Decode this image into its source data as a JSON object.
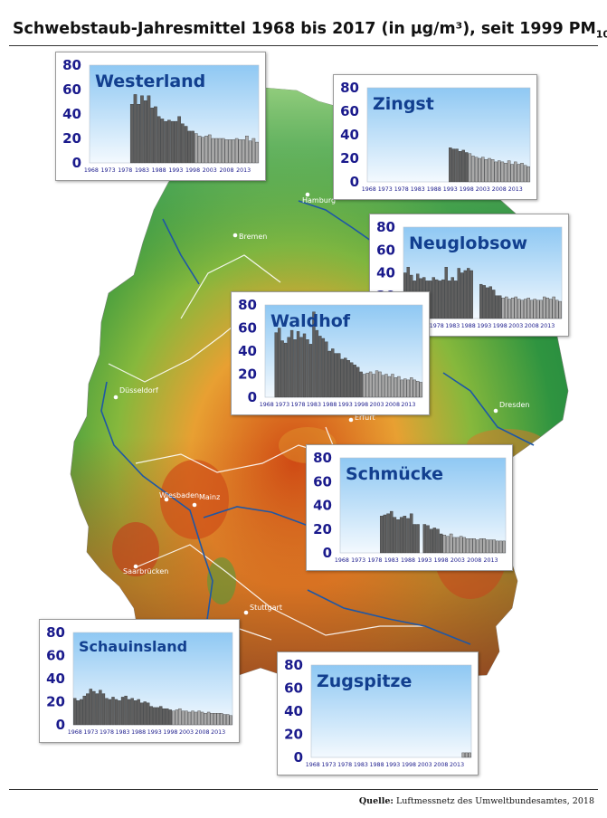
{
  "title": {
    "main": "Schwebstaub-Jahresmittel 1968 bis 2017 (in µg/m³), seit 1999 PM",
    "sub": "10"
  },
  "source": {
    "label": "Quelle:",
    "text": "Luftmessnetz des Umweltbundesamtes, 2018"
  },
  "colors": {
    "bar_tsp": "#5f5f5f",
    "bar_pm10": "#a9a9a9",
    "panel_top": "#8fc8f3",
    "panel_bottom": "#f3f9fe",
    "axis_text": "#1a1a8c",
    "station_text": "#123f8f"
  },
  "map": {
    "cities": [
      "Hamburg",
      "Bremen",
      "Düsseldorf",
      "Erfurt",
      "Dresden",
      "Wiesbaden",
      "Mainz",
      "Saarbrücken",
      "Stuttgart"
    ]
  },
  "chart_data": [
    {
      "type": "bar",
      "station": "Westerland",
      "x_start": 1968,
      "x_end": 2017,
      "ylim": [
        0,
        80
      ],
      "yticks": [
        0,
        20,
        40,
        60,
        80
      ],
      "xticks": [
        "1968",
        "1973",
        "1978",
        "1983",
        "1988",
        "1993",
        "1998",
        "2003",
        "2008",
        "2013"
      ],
      "pm10_from": 1999,
      "values": [
        null,
        null,
        null,
        null,
        null,
        null,
        null,
        null,
        null,
        null,
        null,
        null,
        48,
        56,
        48,
        55,
        51,
        55,
        45,
        46,
        38,
        36,
        34,
        35,
        34,
        34,
        38,
        32,
        30,
        26,
        26,
        24,
        22,
        21,
        22,
        23,
        20,
        20,
        20,
        20,
        19,
        19,
        19,
        20,
        19,
        19,
        22,
        18,
        20,
        17
      ]
    },
    {
      "type": "bar",
      "station": "Zingst",
      "x_start": 1968,
      "x_end": 2017,
      "ylim": [
        0,
        80
      ],
      "yticks": [
        0,
        20,
        40,
        60,
        80
      ],
      "xticks": [
        "1968",
        "1973",
        "1978",
        "1983",
        "1988",
        "1993",
        "1998",
        "2003",
        "2008",
        "2013"
      ],
      "pm10_from": 1999,
      "values": [
        null,
        null,
        null,
        null,
        null,
        null,
        null,
        null,
        null,
        null,
        null,
        null,
        null,
        null,
        null,
        null,
        null,
        null,
        null,
        null,
        null,
        null,
        null,
        null,
        null,
        29,
        28,
        28,
        26,
        27,
        25,
        24,
        22,
        21,
        20,
        21,
        19,
        20,
        19,
        17,
        18,
        17,
        16,
        18,
        15,
        17,
        15,
        16,
        14,
        13
      ]
    },
    {
      "type": "bar",
      "station": "Neuglobsow",
      "x_start": 1968,
      "x_end": 2017,
      "ylim": [
        0,
        80
      ],
      "yticks": [
        0,
        20,
        40,
        60,
        80
      ],
      "xticks": [
        "1968",
        "1973",
        "1978",
        "1983",
        "1988",
        "1993",
        "1998",
        "2003",
        "2008",
        "2013"
      ],
      "pm10_from": 1999,
      "values": [
        40,
        45,
        38,
        33,
        39,
        35,
        36,
        33,
        33,
        36,
        34,
        33,
        34,
        45,
        33,
        36,
        33,
        44,
        40,
        42,
        44,
        42,
        null,
        null,
        30,
        29,
        27,
        28,
        25,
        20,
        20,
        18,
        19,
        17,
        18,
        19,
        17,
        16,
        17,
        18,
        16,
        17,
        16,
        16,
        19,
        18,
        17,
        19,
        16,
        15
      ]
    },
    {
      "type": "bar",
      "station": "Waldhof",
      "x_start": 1968,
      "x_end": 2017,
      "ylim": [
        0,
        80
      ],
      "yticks": [
        0,
        20,
        40,
        60,
        80
      ],
      "xticks": [
        "1968",
        "1973",
        "1978",
        "1983",
        "1988",
        "1993",
        "1998",
        "2003",
        "2008",
        "2013"
      ],
      "pm10_from": 1999,
      "values": [
        null,
        null,
        null,
        56,
        60,
        49,
        47,
        52,
        58,
        50,
        57,
        52,
        55,
        50,
        46,
        74,
        58,
        53,
        51,
        48,
        40,
        42,
        38,
        38,
        33,
        34,
        32,
        30,
        28,
        26,
        22,
        20,
        21,
        22,
        20,
        23,
        22,
        19,
        20,
        18,
        20,
        17,
        18,
        15,
        16,
        15,
        17,
        15,
        14,
        13
      ]
    },
    {
      "type": "bar",
      "station": "Schmücke",
      "x_start": 1968,
      "x_end": 2017,
      "ylim": [
        0,
        80
      ],
      "yticks": [
        0,
        20,
        40,
        60,
        80
      ],
      "xticks": [
        "1968",
        "1973",
        "1978",
        "1983",
        "1988",
        "1993",
        "1998",
        "2003",
        "2008",
        "2013"
      ],
      "pm10_from": 1999,
      "values": [
        null,
        null,
        null,
        null,
        null,
        null,
        null,
        null,
        null,
        null,
        null,
        null,
        31,
        32,
        33,
        35,
        30,
        28,
        30,
        31,
        29,
        33,
        24,
        24,
        null,
        24,
        23,
        20,
        21,
        20,
        16,
        15,
        14,
        16,
        13,
        13,
        14,
        13,
        12,
        12,
        12,
        11,
        12,
        12,
        11,
        11,
        11,
        10,
        10,
        10
      ]
    },
    {
      "type": "bar",
      "station": "Schauinsland",
      "x_start": 1968,
      "x_end": 2017,
      "ylim": [
        0,
        80
      ],
      "yticks": [
        0,
        20,
        40,
        60,
        80
      ],
      "xticks": [
        "1968",
        "1973",
        "1978",
        "1983",
        "1988",
        "1993",
        "1998",
        "2003",
        "2008",
        "2013"
      ],
      "pm10_from": 1999,
      "values": [
        23,
        21,
        22,
        25,
        27,
        31,
        29,
        27,
        30,
        27,
        23,
        22,
        24,
        22,
        21,
        24,
        25,
        22,
        23,
        21,
        22,
        19,
        20,
        19,
        16,
        15,
        15,
        16,
        14,
        14,
        13,
        12,
        13,
        14,
        12,
        12,
        11,
        12,
        11,
        12,
        11,
        10,
        11,
        10,
        10,
        10,
        10,
        9,
        9,
        8
      ]
    },
    {
      "type": "bar",
      "station": "Zugspitze",
      "x_start": 1968,
      "x_end": 2017,
      "ylim": [
        0,
        80
      ],
      "yticks": [
        0,
        20,
        40,
        60,
        80
      ],
      "xticks": [
        "1968",
        "1973",
        "1978",
        "1983",
        "1988",
        "1993",
        "1998",
        "2003",
        "2008",
        "2013"
      ],
      "pm10_from": 1999,
      "values": [
        null,
        null,
        null,
        null,
        null,
        null,
        null,
        null,
        null,
        null,
        null,
        null,
        null,
        null,
        null,
        null,
        null,
        null,
        null,
        null,
        null,
        null,
        null,
        null,
        null,
        null,
        null,
        null,
        null,
        null,
        null,
        null,
        null,
        null,
        null,
        null,
        null,
        null,
        null,
        null,
        null,
        null,
        null,
        null,
        null,
        null,
        null,
        4,
        4,
        4
      ]
    }
  ]
}
